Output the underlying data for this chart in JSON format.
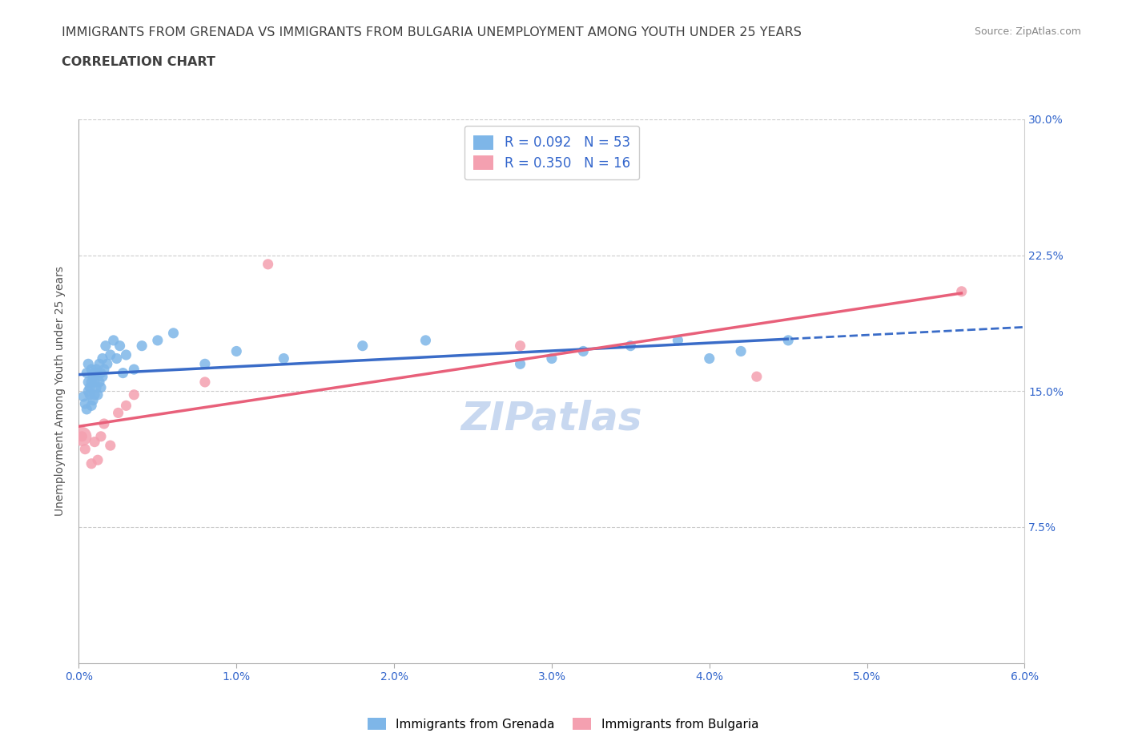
{
  "title_line1": "IMMIGRANTS FROM GRENADA VS IMMIGRANTS FROM BULGARIA UNEMPLOYMENT AMONG YOUTH UNDER 25 YEARS",
  "title_line2": "CORRELATION CHART",
  "source_text": "Source: ZipAtlas.com",
  "ylabel": "Unemployment Among Youth under 25 years",
  "xlim": [
    0.0,
    0.06
  ],
  "ylim": [
    0.0,
    0.3
  ],
  "xticks": [
    0.0,
    0.01,
    0.02,
    0.03,
    0.04,
    0.05,
    0.06
  ],
  "xticklabels": [
    "0.0%",
    "1.0%",
    "2.0%",
    "3.0%",
    "4.0%",
    "5.0%",
    "6.0%"
  ],
  "yticks": [
    0.0,
    0.075,
    0.15,
    0.225,
    0.3
  ],
  "right_yticks": [
    0.075,
    0.15,
    0.225,
    0.3
  ],
  "right_yticklabels": [
    "7.5%",
    "15.0%",
    "22.5%",
    "30.0%"
  ],
  "grenada_color": "#7EB6E8",
  "bulgaria_color": "#F4A0B0",
  "grenada_line_color": "#3A6CC8",
  "bulgaria_line_color": "#E8607A",
  "grenada_R": 0.092,
  "grenada_N": 53,
  "bulgaria_R": 0.35,
  "bulgaria_N": 16,
  "legend_R_color": "#3366CC",
  "watermark_text": "ZIPatlas",
  "watermark_color": "#C8D8F0",
  "grenada_x": [
    0.0003,
    0.0004,
    0.0005,
    0.0005,
    0.0006,
    0.0006,
    0.0006,
    0.0007,
    0.0007,
    0.0008,
    0.0008,
    0.0008,
    0.0009,
    0.0009,
    0.001,
    0.001,
    0.001,
    0.0011,
    0.0011,
    0.0012,
    0.0012,
    0.0013,
    0.0013,
    0.0014,
    0.0014,
    0.0015,
    0.0015,
    0.0016,
    0.0017,
    0.0018,
    0.002,
    0.0022,
    0.0024,
    0.0026,
    0.0028,
    0.003,
    0.0035,
    0.004,
    0.005,
    0.006,
    0.008,
    0.01,
    0.013,
    0.018,
    0.022,
    0.028,
    0.03,
    0.032,
    0.035,
    0.038,
    0.04,
    0.042,
    0.045
  ],
  "grenada_y": [
    0.147,
    0.143,
    0.14,
    0.16,
    0.15,
    0.155,
    0.165,
    0.152,
    0.148,
    0.155,
    0.142,
    0.162,
    0.145,
    0.158,
    0.148,
    0.16,
    0.155,
    0.152,
    0.162,
    0.148,
    0.16,
    0.155,
    0.165,
    0.152,
    0.16,
    0.158,
    0.168,
    0.162,
    0.175,
    0.165,
    0.17,
    0.178,
    0.168,
    0.175,
    0.16,
    0.17,
    0.162,
    0.175,
    0.178,
    0.182,
    0.165,
    0.172,
    0.168,
    0.175,
    0.178,
    0.165,
    0.168,
    0.172,
    0.175,
    0.178,
    0.168,
    0.172,
    0.178
  ],
  "bulgaria_x": [
    0.0002,
    0.0004,
    0.0008,
    0.001,
    0.0012,
    0.0014,
    0.0016,
    0.002,
    0.0025,
    0.003,
    0.0035,
    0.008,
    0.012,
    0.028,
    0.043,
    0.056
  ],
  "bulgaria_y": [
    0.125,
    0.118,
    0.11,
    0.122,
    0.112,
    0.125,
    0.132,
    0.12,
    0.138,
    0.142,
    0.148,
    0.155,
    0.22,
    0.175,
    0.158,
    0.205
  ],
  "grid_color": "#CCCCCC",
  "title_color": "#404040",
  "axis_color": "#3366CC",
  "grenada_line_x_solid_end": 0.045,
  "bulgaria_line_x_solid_end": 0.056
}
